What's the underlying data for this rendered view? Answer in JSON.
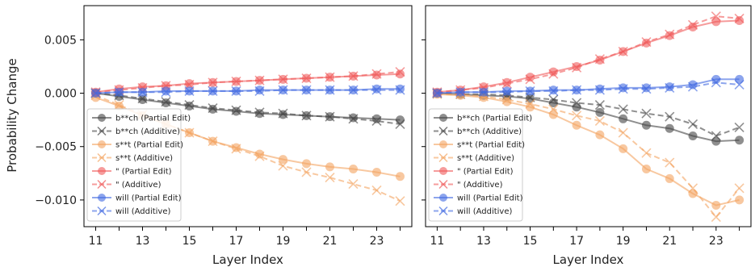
{
  "chart_data": [
    {
      "type": "line",
      "title": "",
      "xlabel": "Layer Index",
      "ylabel": "Probability Change",
      "xlim": [
        10.5,
        24.5
      ],
      "ylim": [
        -0.0125,
        0.0082
      ],
      "xticks": [
        11,
        13,
        15,
        17,
        19,
        21,
        23
      ],
      "yticks": [
        0.005,
        0.0,
        -0.005,
        -0.01
      ],
      "ytick_labels": [
        "0.005",
        "0.000",
        "−0.005",
        "−0.010"
      ],
      "grid": false,
      "legend_position": "lower-left",
      "x": [
        11,
        12,
        13,
        14,
        15,
        16,
        17,
        18,
        19,
        20,
        21,
        22,
        23,
        24
      ],
      "series": [
        {
          "name": "b**ch (Partial Edit)",
          "color": "#444444",
          "marker": "circle",
          "dashed": false,
          "values": [
            0.0,
            -0.0003,
            -0.0006,
            -0.0009,
            -0.0012,
            -0.0015,
            -0.0017,
            -0.0019,
            -0.002,
            -0.0021,
            -0.0022,
            -0.0023,
            -0.0024,
            -0.0025
          ]
        },
        {
          "name": "b**ch (Additive)",
          "color": "#444444",
          "marker": "x",
          "dashed": true,
          "values": [
            0.0,
            -0.0002,
            -0.0005,
            -0.0008,
            -0.0011,
            -0.0014,
            -0.0016,
            -0.0018,
            -0.0019,
            -0.0021,
            -0.0022,
            -0.0024,
            -0.0026,
            -0.0029
          ]
        },
        {
          "name": "s**t (Partial Edit)",
          "color": "#f4a460",
          "marker": "circle",
          "dashed": false,
          "values": [
            -0.0004,
            -0.0012,
            -0.0021,
            -0.0029,
            -0.0037,
            -0.0045,
            -0.0051,
            -0.0057,
            -0.0062,
            -0.0066,
            -0.0069,
            -0.0071,
            -0.0074,
            -0.0078
          ]
        },
        {
          "name": "s**t (Additive)",
          "color": "#f4a460",
          "marker": "x",
          "dashed": true,
          "values": [
            -0.0002,
            -0.0011,
            -0.002,
            -0.0029,
            -0.0037,
            -0.0045,
            -0.0052,
            -0.0059,
            -0.0068,
            -0.0074,
            -0.0079,
            -0.0085,
            -0.0091,
            -0.0101
          ]
        },
        {
          "name": "\" (Partial Edit)",
          "color": "#f05a5a",
          "marker": "circle",
          "dashed": false,
          "values": [
            0.0001,
            0.0004,
            0.0006,
            0.0007,
            0.0009,
            0.001,
            0.0011,
            0.0012,
            0.0013,
            0.0014,
            0.0015,
            0.0016,
            0.0017,
            0.0018
          ]
        },
        {
          "name": "\" (Additive)",
          "color": "#f05a5a",
          "marker": "x",
          "dashed": true,
          "values": [
            0.0001,
            0.0003,
            0.0005,
            0.0007,
            0.0008,
            0.001,
            0.0011,
            0.0012,
            0.0013,
            0.0014,
            0.0015,
            0.0016,
            0.0018,
            0.002
          ]
        },
        {
          "name": "will (Partial Edit)",
          "color": "#4169e1",
          "marker": "circle",
          "dashed": false,
          "values": [
            0.0,
            0.0001,
            0.0001,
            0.0002,
            0.0002,
            0.0002,
            0.0002,
            0.0003,
            0.0003,
            0.0003,
            0.0003,
            0.0003,
            0.0004,
            0.0004
          ]
        },
        {
          "name": "will (Additive)",
          "color": "#4169e1",
          "marker": "x",
          "dashed": true,
          "values": [
            0.0,
            0.0001,
            0.0001,
            0.0001,
            0.0002,
            0.0002,
            0.0002,
            0.0002,
            0.0003,
            0.0003,
            0.0003,
            0.0003,
            0.0003,
            0.0003
          ]
        }
      ]
    },
    {
      "type": "line",
      "title": "",
      "xlabel": "Layer Index",
      "ylabel": "",
      "xlim": [
        10.5,
        24.5
      ],
      "ylim": [
        -0.0125,
        0.0082
      ],
      "xticks": [
        11,
        13,
        15,
        17,
        19,
        21,
        23
      ],
      "grid": false,
      "legend_position": "lower-left",
      "x": [
        11,
        12,
        13,
        14,
        15,
        16,
        17,
        18,
        19,
        20,
        21,
        22,
        23,
        24
      ],
      "series": [
        {
          "name": "b**ch (Partial Edit)",
          "color": "#444444",
          "marker": "circle",
          "dashed": false,
          "values": [
            0.0,
            -0.0001,
            -0.0002,
            -0.0003,
            -0.0005,
            -0.0009,
            -0.0013,
            -0.0018,
            -0.0024,
            -0.003,
            -0.0033,
            -0.004,
            -0.0045,
            -0.0044
          ]
        },
        {
          "name": "b**ch (Additive)",
          "color": "#444444",
          "marker": "x",
          "dashed": true,
          "values": [
            0.0,
            -0.0001,
            -0.0001,
            -0.0002,
            -0.0004,
            -0.0006,
            -0.0009,
            -0.0011,
            -0.0015,
            -0.0019,
            -0.0022,
            -0.0029,
            -0.004,
            -0.0032
          ]
        },
        {
          "name": "s**t (Partial Edit)",
          "color": "#f4a460",
          "marker": "circle",
          "dashed": false,
          "values": [
            -0.0001,
            -0.0002,
            -0.0004,
            -0.0008,
            -0.0013,
            -0.002,
            -0.003,
            -0.0039,
            -0.0052,
            -0.0071,
            -0.008,
            -0.0094,
            -0.0105,
            -0.01
          ]
        },
        {
          "name": "s**t (Additive)",
          "color": "#f4a460",
          "marker": "x",
          "dashed": true,
          "values": [
            -0.0001,
            -0.0001,
            -0.0003,
            -0.0006,
            -0.001,
            -0.0015,
            -0.0021,
            -0.0026,
            -0.0037,
            -0.0056,
            -0.0065,
            -0.0089,
            -0.0116,
            -0.0089
          ]
        },
        {
          "name": "\" (Partial Edit)",
          "color": "#f05a5a",
          "marker": "circle",
          "dashed": false,
          "values": [
            0.0001,
            0.0003,
            0.0006,
            0.001,
            0.0015,
            0.002,
            0.0025,
            0.0031,
            0.0039,
            0.0047,
            0.0054,
            0.0062,
            0.0067,
            0.0068
          ]
        },
        {
          "name": "\" (Additive)",
          "color": "#f05a5a",
          "marker": "x",
          "dashed": true,
          "values": [
            0.0001,
            0.0003,
            0.0005,
            0.0009,
            0.0013,
            0.0018,
            0.0024,
            0.0032,
            0.0039,
            0.0048,
            0.0055,
            0.0064,
            0.0072,
            0.007
          ]
        },
        {
          "name": "will (Partial Edit)",
          "color": "#4169e1",
          "marker": "circle",
          "dashed": false,
          "values": [
            0.0,
            0.0001,
            0.0001,
            0.0002,
            0.0002,
            0.0003,
            0.0003,
            0.0004,
            0.0005,
            0.0005,
            0.0006,
            0.0008,
            0.0013,
            0.0013
          ]
        },
        {
          "name": "will (Additive)",
          "color": "#4169e1",
          "marker": "x",
          "dashed": true,
          "values": [
            0.0,
            0.0001,
            0.0001,
            0.0001,
            0.0002,
            0.0002,
            0.0003,
            0.0003,
            0.0004,
            0.0004,
            0.0005,
            0.0006,
            0.001,
            0.0008
          ]
        }
      ]
    }
  ]
}
